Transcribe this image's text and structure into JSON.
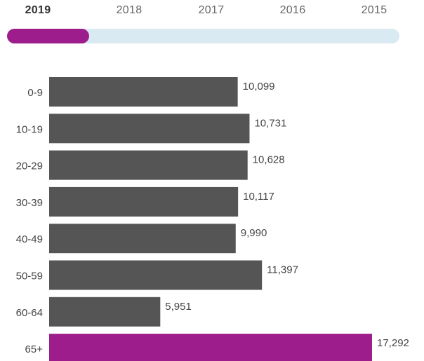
{
  "year_selector": {
    "years": [
      "2019",
      "2018",
      "2017",
      "2016",
      "2015"
    ],
    "selected": "2019",
    "selected_index": 0,
    "track_color": "#daeaf3",
    "thumb_color": "#9e1d8c"
  },
  "chart_data": {
    "type": "bar",
    "orientation": "horizontal",
    "categories": [
      "0-9",
      "10-19",
      "20-29",
      "30-39",
      "40-49",
      "50-59",
      "60-64",
      "65+"
    ],
    "values": [
      10099,
      10731,
      10628,
      10117,
      9990,
      11397,
      5951,
      17292
    ],
    "value_labels": [
      "10,099",
      "10,731",
      "10,628",
      "10,117",
      "9,990",
      "11,397",
      "5,951",
      "17,292"
    ],
    "xlim": [
      0,
      17292
    ],
    "grid": false,
    "colors": {
      "default": "#555555",
      "highlight": "#9e1d8c",
      "highlight_category": "65+"
    }
  }
}
